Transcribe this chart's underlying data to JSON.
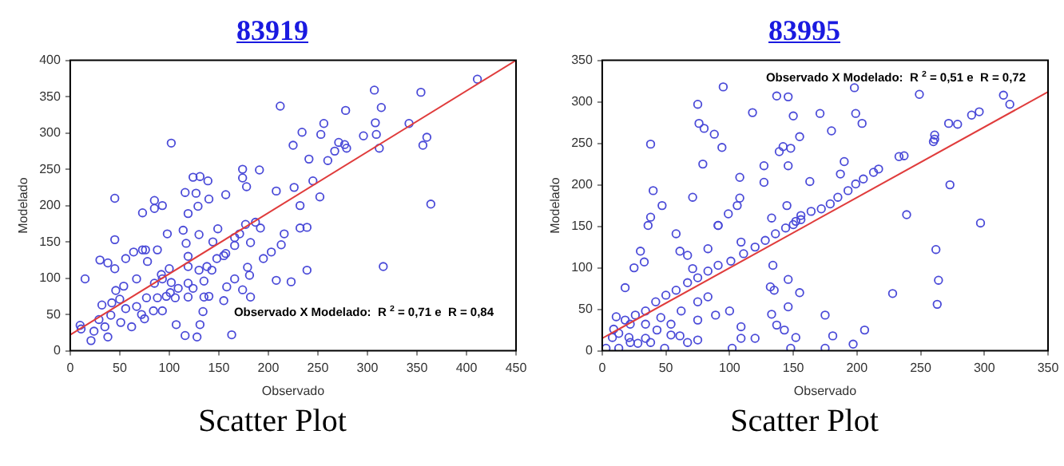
{
  "chart_data": [
    {
      "type": "scatter",
      "title": "83919",
      "xlabel": "Observado",
      "ylabel": "Modelado",
      "annotations": [
        "Observado X Modelado:  R $^{2}$ = 0,71 e  R = 0,84",
        "Scatter Plot"
      ],
      "xlim": [
        0,
        450
      ],
      "ylim": [
        0,
        400
      ],
      "xticks": [
        0,
        50,
        100,
        150,
        200,
        250,
        300,
        350,
        400,
        450
      ],
      "yticks": [
        0,
        50,
        100,
        150,
        200,
        250,
        300,
        350,
        400
      ],
      "grid": false,
      "series": [
        {
          "type": "scatter",
          "marker": "circle",
          "color": "#4a4ad8",
          "x": [
            411,
            307,
            354,
            212,
            278,
            314,
            342,
            256,
            308,
            309,
            296,
            253,
            234,
            102,
            225,
            277,
            356,
            360,
            312,
            279,
            241,
            267,
            174,
            191,
            124,
            131,
            139,
            174,
            178,
            364,
            45,
            73,
            85,
            85,
            93,
            116,
            127,
            140,
            157,
            129,
            119,
            232,
            252,
            208,
            226,
            245,
            260,
            271,
            15,
            30,
            38,
            45,
            45,
            56,
            64,
            73,
            76,
            88,
            78,
            98,
            114,
            117,
            130,
            144,
            149,
            166,
            155,
            138,
            119,
            119,
            100,
            92,
            67,
            85,
            102,
            124,
            77,
            101,
            119,
            135,
            140,
            158,
            166,
            181,
            179,
            195,
            208,
            216,
            213,
            232,
            239,
            239,
            316,
            223,
            203,
            182,
            174,
            155,
            116,
            128,
            131,
            134,
            163,
            107,
            93,
            75,
            62,
            51,
            41,
            35,
            38,
            21,
            11,
            10,
            32,
            42,
            50,
            56,
            67,
            72,
            84,
            88,
            97,
            106,
            109,
            119,
            130,
            135,
            143,
            148,
            157,
            166,
            171,
            177,
            187,
            192,
            182,
            29,
            24,
            46,
            54,
            93
          ],
          "values": [
            374,
            359,
            356,
            337,
            331,
            335,
            313,
            313,
            314,
            298,
            296,
            298,
            301,
            286,
            283,
            284,
            283,
            294,
            279,
            279,
            264,
            275,
            250,
            249,
            239,
            240,
            234,
            238,
            226,
            202,
            210,
            190,
            207,
            196,
            200,
            218,
            217,
            209,
            215,
            199,
            189,
            200,
            212,
            220,
            225,
            234,
            262,
            287,
            99,
            125,
            121,
            153,
            113,
            127,
            136,
            139,
            139,
            139,
            123,
            161,
            166,
            148,
            160,
            150,
            168,
            156,
            131,
            116,
            116,
            130,
            113,
            105,
            99,
            93,
            94,
            86,
            73,
            80,
            74,
            74,
            75,
            88,
            99,
            104,
            115,
            127,
            97,
            161,
            146,
            169,
            170,
            111,
            116,
            95,
            136,
            74,
            84,
            69,
            21,
            19,
            36,
            54,
            22,
            36,
            55,
            44,
            33,
            39,
            49,
            33,
            19,
            14,
            30,
            35,
            63,
            66,
            71,
            58,
            61,
            50,
            55,
            73,
            75,
            73,
            86,
            93,
            111,
            96,
            111,
            127,
            134,
            145,
            161,
            174,
            177,
            169,
            149,
            43,
            27,
            83,
            89,
            99
          ]
        },
        {
          "type": "line",
          "marker": "none",
          "color": "#e03c3c",
          "x": [
            0,
            450
          ],
          "values": [
            22,
            400
          ]
        }
      ]
    },
    {
      "type": "scatter",
      "title": "83995",
      "xlabel": "Observado",
      "ylabel": "Modelado",
      "annotations": [
        "Observado X Modelado:  R $^{2}$ = 0,51 e  R = 0,72",
        "Scatter Plot"
      ],
      "xlim": [
        0,
        350
      ],
      "ylim": [
        0,
        350
      ],
      "xticks": [
        0,
        50,
        100,
        150,
        200,
        250,
        300,
        350
      ],
      "yticks": [
        0,
        50,
        100,
        150,
        200,
        250,
        300,
        350
      ],
      "grid": false,
      "series": [
        {
          "type": "scatter",
          "marker": "circle",
          "color": "#4a4ad8",
          "x": [
            95,
            198,
            137,
            146,
            249,
            315,
            320,
            75,
            118,
            171,
            199,
            204,
            150,
            290,
            296,
            76,
            80,
            88,
            155,
            180,
            38,
            94,
            142,
            148,
            139,
            272,
            279,
            79,
            127,
            146,
            190,
            187,
            108,
            127,
            163,
            233,
            237,
            261,
            260,
            261,
            273,
            40,
            71,
            108,
            106,
            99,
            47,
            38,
            36,
            91,
            133,
            145,
            239,
            297,
            217,
            213,
            205,
            199,
            193,
            185,
            179,
            172,
            164,
            156,
            152,
            150,
            18,
            30,
            33,
            25,
            58,
            61,
            67,
            71,
            83,
            91,
            109,
            100,
            109,
            109,
            89,
            75,
            132,
            135,
            133,
            146,
            134,
            146,
            155,
            152,
            143,
            137,
            175,
            181,
            197,
            206,
            228,
            262,
            264,
            263,
            175,
            148,
            120,
            102,
            75,
            67,
            49,
            3,
            13,
            21,
            28,
            38,
            54,
            43,
            61,
            8,
            11,
            26,
            34,
            42,
            50,
            58,
            67,
            75,
            83,
            91,
            101,
            111,
            120,
            128,
            136,
            144,
            156,
            13,
            22,
            34,
            46,
            54,
            62,
            75,
            83,
            22,
            34,
            9,
            18
          ],
          "values": [
            318,
            317,
            307,
            306,
            309,
            308,
            297,
            297,
            287,
            286,
            286,
            274,
            283,
            284,
            288,
            274,
            268,
            261,
            258,
            265,
            249,
            245,
            246,
            244,
            240,
            274,
            273,
            225,
            223,
            223,
            228,
            213,
            209,
            203,
            204,
            234,
            235,
            260,
            252,
            255,
            200,
            193,
            185,
            184,
            175,
            165,
            175,
            161,
            151,
            151,
            160,
            175,
            164,
            154,
            219,
            215,
            207,
            201,
            193,
            185,
            177,
            171,
            168,
            163,
            156,
            152,
            76,
            120,
            107,
            100,
            141,
            120,
            115,
            99,
            123,
            151,
            131,
            48,
            29,
            15,
            43,
            37,
            77,
            73,
            44,
            53,
            103,
            86,
            70,
            16,
            25,
            31,
            43,
            18,
            8,
            25,
            69,
            122,
            85,
            56,
            3,
            3,
            15,
            3,
            13,
            10,
            3,
            3,
            3,
            16,
            9,
            10,
            19,
            25,
            18,
            16,
            41,
            43,
            48,
            59,
            67,
            73,
            82,
            88,
            96,
            103,
            108,
            117,
            125,
            133,
            141,
            148,
            158,
            21,
            32,
            32,
            40,
            32,
            48,
            59,
            65,
            10,
            15,
            26,
            37
          ]
        },
        {
          "type": "line",
          "marker": "none",
          "color": "#e03c3c",
          "x": [
            0,
            350
          ],
          "values": [
            15,
            312
          ]
        }
      ]
    }
  ]
}
